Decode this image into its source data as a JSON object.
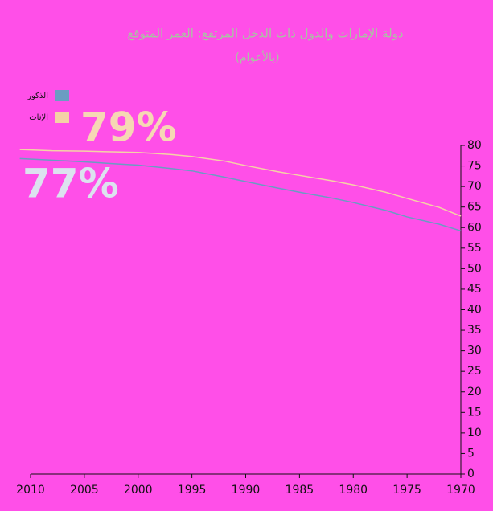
{
  "chart_data": {
    "type": "line",
    "title": "دولة الإمارات والدول ذات الدخل المرتفع: العمر المتوقع",
    "subtitle": "(بالأعوام)",
    "x": [
      2011,
      2008,
      2005,
      2002,
      2000,
      1997,
      1995,
      1992,
      1990,
      1987,
      1985,
      1982,
      1980,
      1977,
      1975,
      1972,
      1970
    ],
    "series": [
      {
        "name": "الذكور",
        "color": "#6b9cc2",
        "values": [
          76.8,
          76.4,
          76.0,
          75.5,
          75.2,
          74.4,
          73.8,
          72.3,
          71.2,
          69.6,
          68.6,
          67.2,
          66.1,
          64.2,
          62.6,
          60.8,
          59.2
        ]
      },
      {
        "name": "الإناث",
        "color": "#f4d2a6",
        "values": [
          79.0,
          78.7,
          78.6,
          78.4,
          78.3,
          77.8,
          77.3,
          76.2,
          75.1,
          73.6,
          72.7,
          71.4,
          70.4,
          68.6,
          67.1,
          64.9,
          62.8
        ]
      }
    ],
    "annotations": [
      "79%",
      "77%"
    ],
    "xlim": [
      2010,
      1970
    ],
    "xticks": [
      2010,
      2005,
      2000,
      1995,
      1990,
      1985,
      1980,
      1975,
      1970
    ],
    "ylim": [
      0,
      80
    ],
    "yticks": [
      0,
      5,
      10,
      15,
      20,
      25,
      30,
      35,
      40,
      45,
      50,
      55,
      60,
      65,
      70,
      75,
      80
    ],
    "legend": "top-left"
  }
}
